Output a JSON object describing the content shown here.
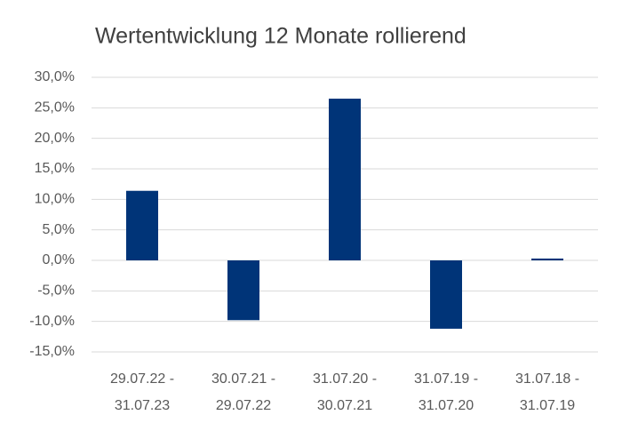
{
  "chart_data": {
    "type": "bar",
    "title": "Wertentwicklung 12 Monate rollierend",
    "categories": [
      "29.07.22 -\n31.07.23",
      "30.07.21 -\n29.07.22",
      "31.07.20 -\n30.07.21",
      "31.07.19 -\n31.07.20",
      "31.07.18 -\n31.07.19"
    ],
    "values": [
      11.4,
      -9.8,
      26.5,
      -11.2,
      0.3
    ],
    "color": "#003478",
    "ylim": [
      -15,
      30
    ],
    "yticks": [
      {
        "value": -15,
        "label": "-15,0%"
      },
      {
        "value": -10,
        "label": "-10,0%"
      },
      {
        "value": -5,
        "label": "-5,0%"
      },
      {
        "value": 0,
        "label": "0,0%"
      },
      {
        "value": 5,
        "label": "5,0%"
      },
      {
        "value": 10,
        "label": "10,0%"
      },
      {
        "value": 15,
        "label": "15,0%"
      },
      {
        "value": 20,
        "label": "20,0%"
      },
      {
        "value": 25,
        "label": "25,0%"
      },
      {
        "value": 30,
        "label": "30,0%"
      }
    ],
    "grid": true
  }
}
